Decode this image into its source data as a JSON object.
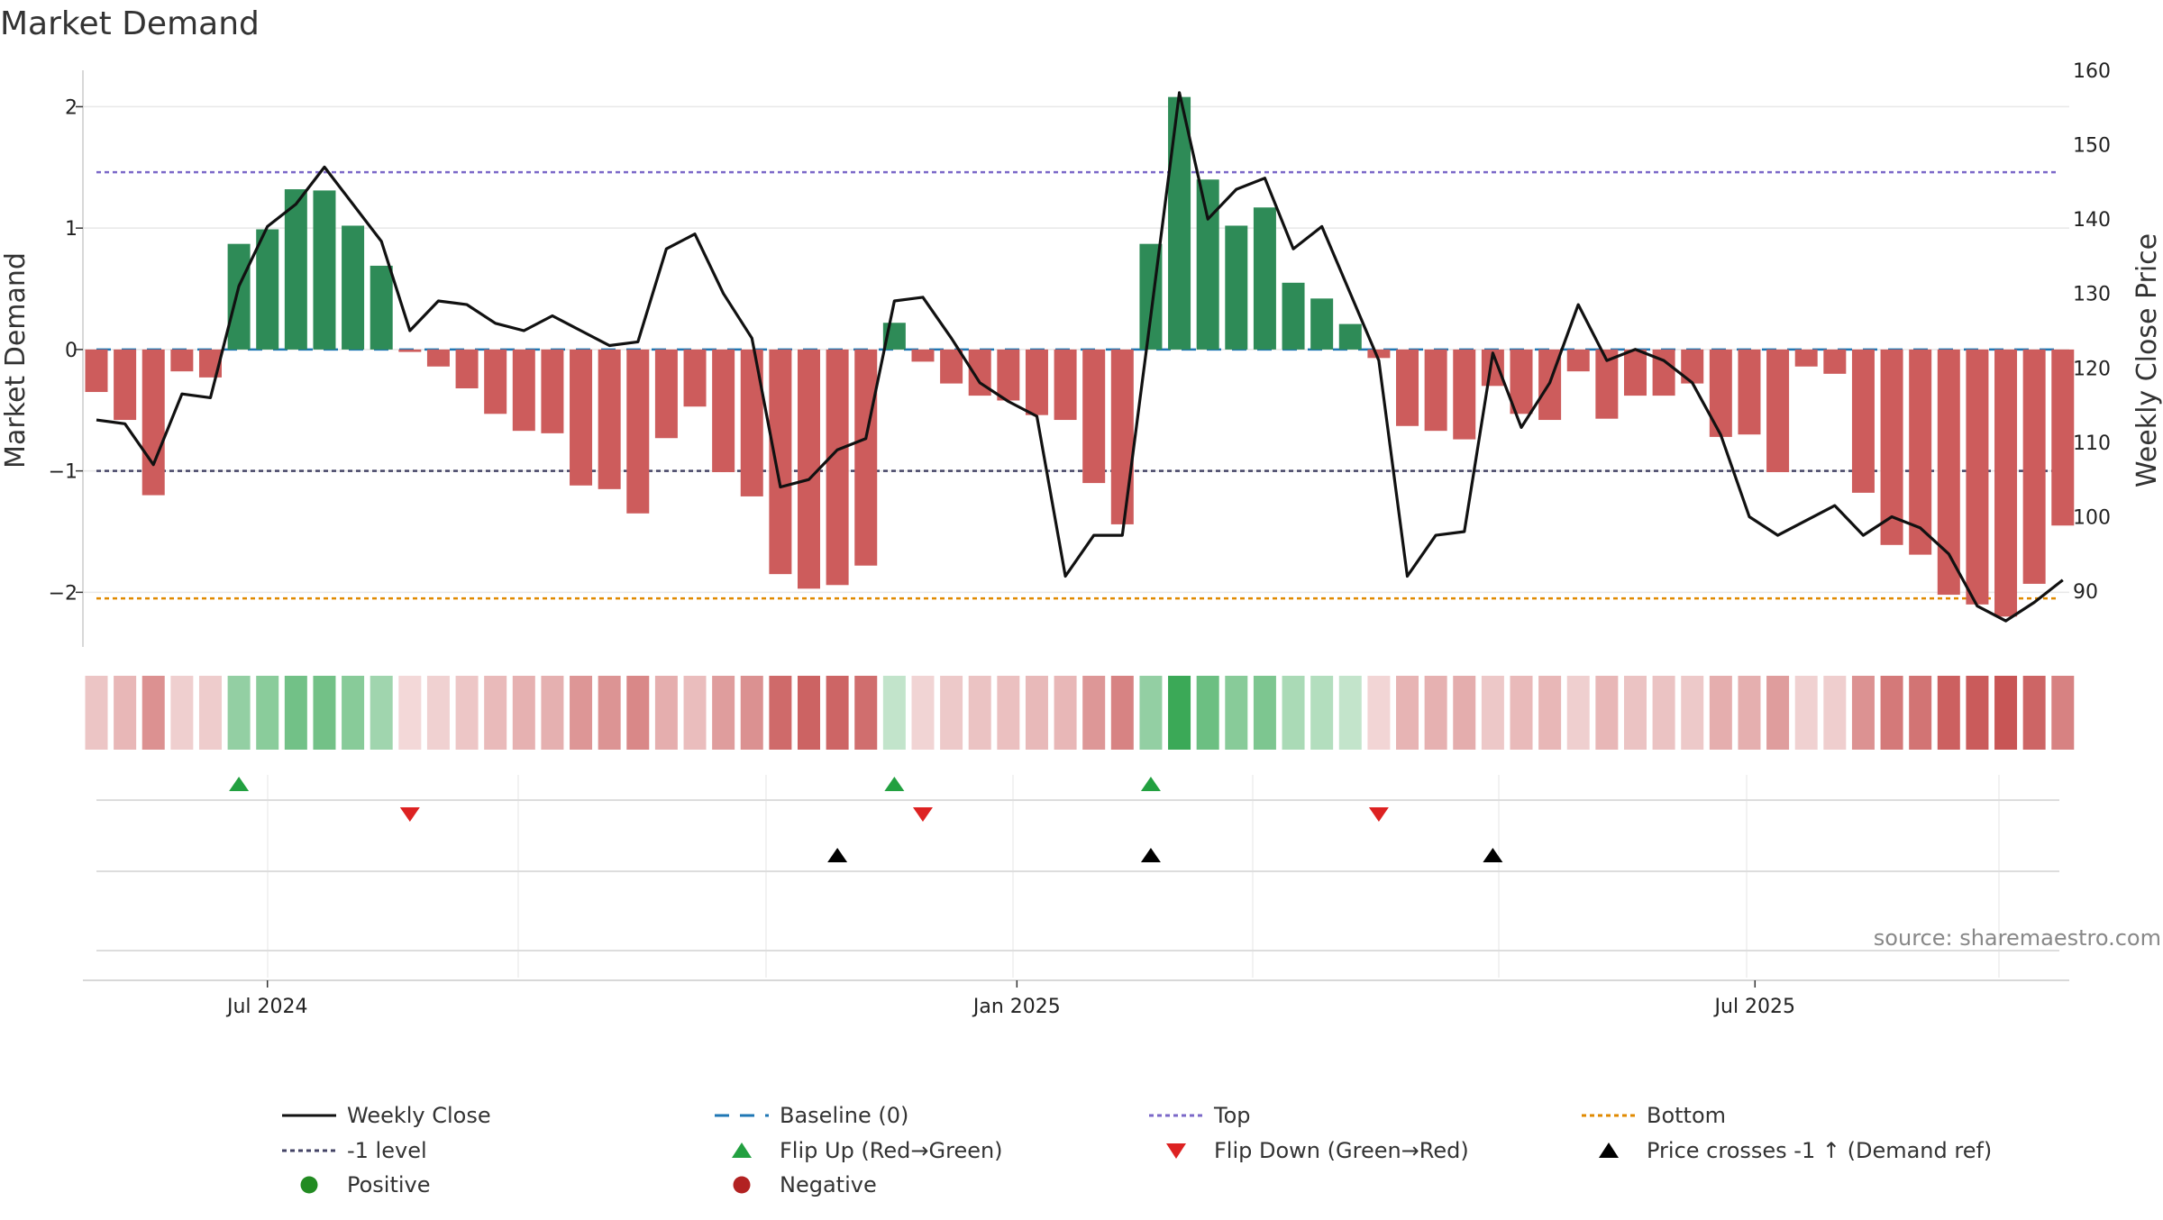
{
  "chart_data": {
    "type": "bar",
    "title": "Market Demand",
    "ylabel_left": "Market Demand",
    "ylabel_right": "Weekly Close Price",
    "ylim_left": [
      -2.45,
      2.3
    ],
    "ylim_right": [
      82.5,
      160
    ],
    "yticks_left": [
      2,
      1,
      0,
      -1,
      -2
    ],
    "yticks_left_labels": [
      "2",
      "1",
      "0",
      "−1",
      "−2"
    ],
    "yticks_right": [
      160,
      150,
      140,
      130,
      120,
      110,
      100,
      90
    ],
    "yticks_right_labels": [
      "160",
      "150",
      "140",
      "130",
      "120",
      "110",
      "100",
      "90"
    ],
    "x_tick_labels": [
      "Jul 2024",
      "Jan 2025",
      "Jul 2025"
    ],
    "x_tick_index": [
      6.0,
      32.3,
      58.2
    ],
    "reference_lines": {
      "baseline": 0,
      "top": 1.46,
      "minus_one": -1,
      "bottom": -2.05
    },
    "demand_values": [
      -0.35,
      -0.58,
      -1.2,
      -0.18,
      -0.23,
      0.87,
      0.99,
      1.32,
      1.31,
      1.02,
      0.69,
      -0.02,
      -0.14,
      -0.32,
      -0.53,
      -0.67,
      -0.69,
      -1.12,
      -1.15,
      -1.35,
      -0.73,
      -0.47,
      -1.01,
      -1.21,
      -1.85,
      -1.97,
      -1.94,
      -1.78,
      0.22,
      -0.1,
      -0.28,
      -0.38,
      -0.42,
      -0.54,
      -0.58,
      -1.1,
      -1.44,
      0.87,
      2.08,
      1.4,
      1.02,
      1.17,
      0.55,
      0.42,
      0.21,
      -0.07,
      -0.63,
      -0.67,
      -0.74,
      -0.3,
      -0.53,
      -0.58,
      -0.18,
      -0.57,
      -0.38,
      -0.38,
      -0.28,
      -0.72,
      -0.7,
      -1.01,
      -0.14,
      -0.2,
      -1.18,
      -1.61,
      -1.69,
      -2.02,
      -2.1,
      -2.2,
      -1.93,
      -1.45
    ],
    "weekly_close": [
      113,
      112.5,
      107,
      116.5,
      116,
      131,
      139,
      142,
      147,
      142,
      137,
      125,
      129,
      128.5,
      126,
      125,
      127,
      125,
      123,
      123.5,
      136,
      138,
      130,
      124,
      104,
      105,
      109,
      110.5,
      129,
      129.5,
      124,
      118,
      115.5,
      113.5,
      92,
      97.5,
      97.5,
      127,
      157,
      140,
      144,
      145.5,
      136,
      139,
      130,
      121,
      92,
      97.5,
      98,
      122,
      112,
      118,
      128.5,
      121,
      122.5,
      121,
      118,
      111,
      100,
      97.5,
      99.5,
      101.5,
      97.5,
      100,
      98.5,
      95,
      88,
      86,
      88.5,
      91.5
    ],
    "flip_up_index": [
      5,
      28,
      37
    ],
    "flip_down_index": [
      11,
      29,
      45
    ],
    "price_cross_index": [
      26,
      37,
      49
    ],
    "legend": [
      {
        "label": "Weekly Close",
        "kind": "solid-line",
        "color": "#111111"
      },
      {
        "label": "Baseline (0)",
        "kind": "dash-line",
        "color": "#1f77b4"
      },
      {
        "label": "Top",
        "kind": "dot-line",
        "color": "#7b68c8"
      },
      {
        "label": "Bottom",
        "kind": "dot-line",
        "color": "#e08a00"
      },
      {
        "label": "-1 level",
        "kind": "dot-line",
        "color": "#444466"
      },
      {
        "label": "Flip Up (Red→Green)",
        "kind": "tri-up",
        "color": "#22a040"
      },
      {
        "label": "Flip Down (Green→Red)",
        "kind": "tri-down",
        "color": "#dd2222"
      },
      {
        "label": "Price crosses -1 ↑ (Demand ref)",
        "kind": "tri-up",
        "color": "#000000"
      },
      {
        "label": "Positive",
        "kind": "circle",
        "color": "#228b22"
      },
      {
        "label": "Negative",
        "kind": "circle",
        "color": "#b22222"
      }
    ]
  },
  "colors": {
    "positive": "#2e8b57",
    "negative": "#cd5c5c",
    "line": "#111111",
    "baseline": "#1f77b4",
    "top": "#7b68c8",
    "bottom": "#e08a00",
    "minus_one": "#444466",
    "flip_up": "#22a040",
    "flip_down": "#dd2222",
    "cross": "#000000"
  },
  "source_text": "source: sharemaestro.com"
}
